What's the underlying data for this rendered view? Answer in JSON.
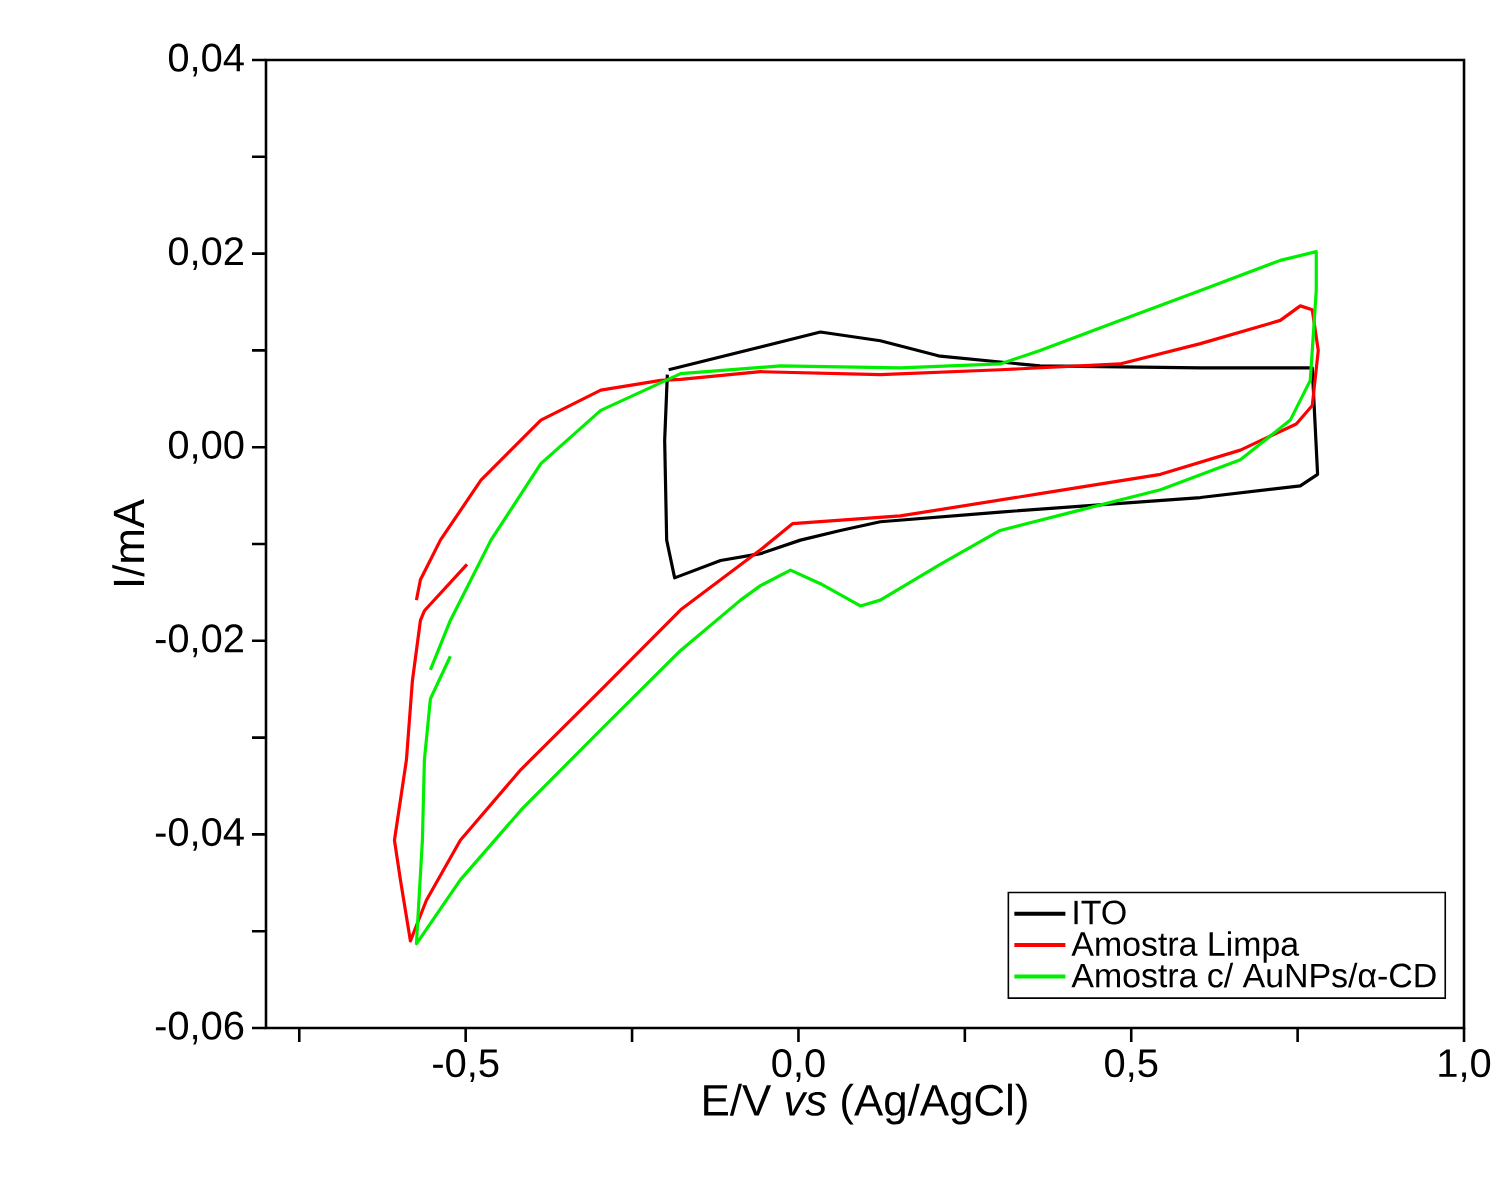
{
  "chart_data": {
    "type": "line",
    "xlabel": "E/V *vs* (Ag/AgCl)",
    "ylabel": "I/mA",
    "xlim": [
      -0.8,
      1.0
    ],
    "ylim": [
      -0.06,
      0.04
    ],
    "xticks": [
      {
        "value": -0.75,
        "label": null
      },
      {
        "value": -0.5,
        "label": "-0,5"
      },
      {
        "value": -0.25,
        "label": null
      },
      {
        "value": 0,
        "label": "0,0"
      },
      {
        "value": 0.25,
        "label": null
      },
      {
        "value": 0.5,
        "label": "0,5"
      },
      {
        "value": 0.75,
        "label": null
      },
      {
        "value": 1.0,
        "label": "1,0"
      }
    ],
    "yticks": [
      {
        "value": -0.06,
        "label": "-0,06"
      },
      {
        "value": -0.05,
        "label": null
      },
      {
        "value": -0.04,
        "label": "-0,04"
      },
      {
        "value": -0.03,
        "label": null
      },
      {
        "value": -0.02,
        "label": "-0,02"
      },
      {
        "value": -0.01,
        "label": null
      },
      {
        "value": 0,
        "label": "0,00"
      },
      {
        "value": 0.01,
        "label": null
      },
      {
        "value": 0.02,
        "label": "0,02"
      },
      {
        "value": 0.03,
        "label": null
      },
      {
        "value": 0.04,
        "label": "0,04"
      }
    ],
    "grid": false,
    "legend": "bottom right",
    "marker": "none",
    "line_style": "solid",
    "series": [
      {
        "name": "ITO",
        "color": "#000000",
        "x": [
          -0.195,
          0.033,
          0.123,
          0.213,
          0.363,
          0.604,
          0.772,
          0.78,
          0.754,
          0.604,
          0.303,
          0.123,
          0.063,
          0.003,
          -0.057,
          -0.117,
          -0.186,
          -0.198,
          -0.201,
          -0.197
        ],
        "values": [
          0.008,
          0.0119,
          0.011,
          0.0094,
          0.0084,
          0.0082,
          0.0082,
          -0.0028,
          -0.004,
          -0.0052,
          -0.0067,
          -0.0077,
          -0.0086,
          -0.0096,
          -0.011,
          -0.0117,
          -0.0135,
          -0.0096,
          0.0007,
          0.0075
        ]
      },
      {
        "name": "Amostra Limpa",
        "color": "#ff0000",
        "x": [
          -0.498,
          -0.562,
          -0.568,
          -0.58,
          -0.589,
          -0.607,
          -0.598,
          -0.583,
          -0.559,
          -0.508,
          -0.417,
          -0.297,
          -0.177,
          -0.057,
          -0.009,
          0.153,
          0.363,
          0.544,
          0.664,
          0.748,
          0.772,
          0.781,
          0.772,
          0.754,
          0.724,
          0.604,
          0.483,
          0.303,
          0.123,
          -0.057,
          -0.177,
          -0.207,
          -0.297,
          -0.387,
          -0.477,
          -0.538,
          -0.568,
          -0.574
        ],
        "values": [
          -0.0121,
          -0.0169,
          -0.0179,
          -0.0241,
          -0.0323,
          -0.0406,
          -0.0447,
          -0.051,
          -0.0468,
          -0.0406,
          -0.0333,
          -0.0251,
          -0.0168,
          -0.0106,
          -0.0079,
          -0.0071,
          -0.0048,
          -0.0028,
          -0.0003,
          0.0024,
          0.0043,
          0.01,
          0.0142,
          0.0146,
          0.0131,
          0.0107,
          0.0086,
          0.008,
          0.0075,
          0.0078,
          0.007,
          0.0069,
          0.0059,
          0.0028,
          -0.0034,
          -0.0096,
          -0.0137,
          -0.0158
        ]
      },
      {
        "name": "Amostra c/ AuNPs/α-CD",
        "color": "#00ee00",
        "x": [
          -0.523,
          -0.553,
          -0.562,
          -0.565,
          -0.574,
          -0.508,
          -0.417,
          -0.297,
          -0.177,
          -0.087,
          -0.057,
          -0.012,
          0.033,
          0.093,
          0.123,
          0.213,
          0.303,
          0.423,
          0.544,
          0.664,
          0.739,
          0.769,
          0.778,
          0.778,
          0.724,
          0.604,
          0.483,
          0.363,
          0.303,
          0.153,
          -0.027,
          -0.177,
          -0.297,
          -0.387,
          -0.462,
          -0.523,
          -0.553
        ],
        "values": [
          -0.0216,
          -0.026,
          -0.0323,
          -0.0406,
          -0.0513,
          -0.0447,
          -0.0375,
          -0.0292,
          -0.021,
          -0.0158,
          -0.0143,
          -0.0127,
          -0.0141,
          -0.0164,
          -0.0158,
          -0.0121,
          -0.0086,
          -0.0065,
          -0.0044,
          -0.0013,
          0.0028,
          0.0069,
          0.0162,
          0.0202,
          0.0193,
          0.0162,
          0.0131,
          0.01,
          0.0086,
          0.0082,
          0.0084,
          0.0076,
          0.0038,
          -0.0017,
          -0.0096,
          -0.0179,
          -0.023
        ]
      }
    ]
  }
}
